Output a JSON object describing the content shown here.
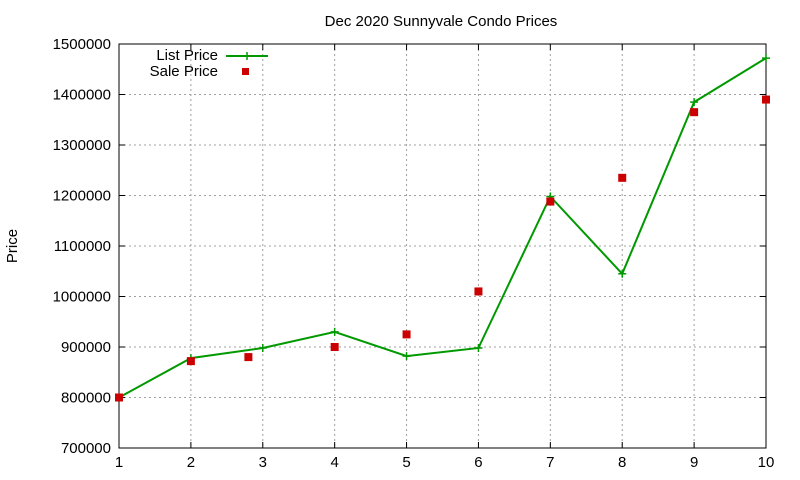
{
  "chart_data": {
    "type": "line",
    "title": "Dec 2020 Sunnyvale Condo Prices",
    "xlabel": "",
    "ylabel": "Price",
    "xlim": [
      1,
      10
    ],
    "ylim": [
      700000,
      1500000
    ],
    "x_ticks": [
      1,
      2,
      3,
      4,
      5,
      6,
      7,
      8,
      9,
      10
    ],
    "y_ticks": [
      700000,
      800000,
      900000,
      1000000,
      1100000,
      1200000,
      1300000,
      1400000,
      1500000
    ],
    "grid": true,
    "legend_position": "top-left",
    "series": [
      {
        "name": "List Price",
        "style": "line+cross",
        "color": "#009900",
        "points": [
          {
            "x": 1,
            "y": 800000
          },
          {
            "x": 2,
            "y": 878000
          },
          {
            "x": 3,
            "y": 898000
          },
          {
            "x": 4,
            "y": 930000
          },
          {
            "x": 5,
            "y": 882000
          },
          {
            "x": 6,
            "y": 898000
          },
          {
            "x": 7,
            "y": 1198000
          },
          {
            "x": 8,
            "y": 1045000
          },
          {
            "x": 9,
            "y": 1385000
          },
          {
            "x": 10,
            "y": 1472000
          }
        ]
      },
      {
        "name": "Sale Price",
        "style": "square",
        "color": "#cc0000",
        "points": [
          {
            "x": 1,
            "y": 800000
          },
          {
            "x": 2,
            "y": 872000
          },
          {
            "x": 2.8,
            "y": 880000
          },
          {
            "x": 4,
            "y": 900000
          },
          {
            "x": 5,
            "y": 925000
          },
          {
            "x": 6,
            "y": 1010000
          },
          {
            "x": 7,
            "y": 1188000
          },
          {
            "x": 8,
            "y": 1235000
          },
          {
            "x": 9,
            "y": 1365000
          },
          {
            "x": 10,
            "y": 1390000
          }
        ]
      }
    ]
  }
}
